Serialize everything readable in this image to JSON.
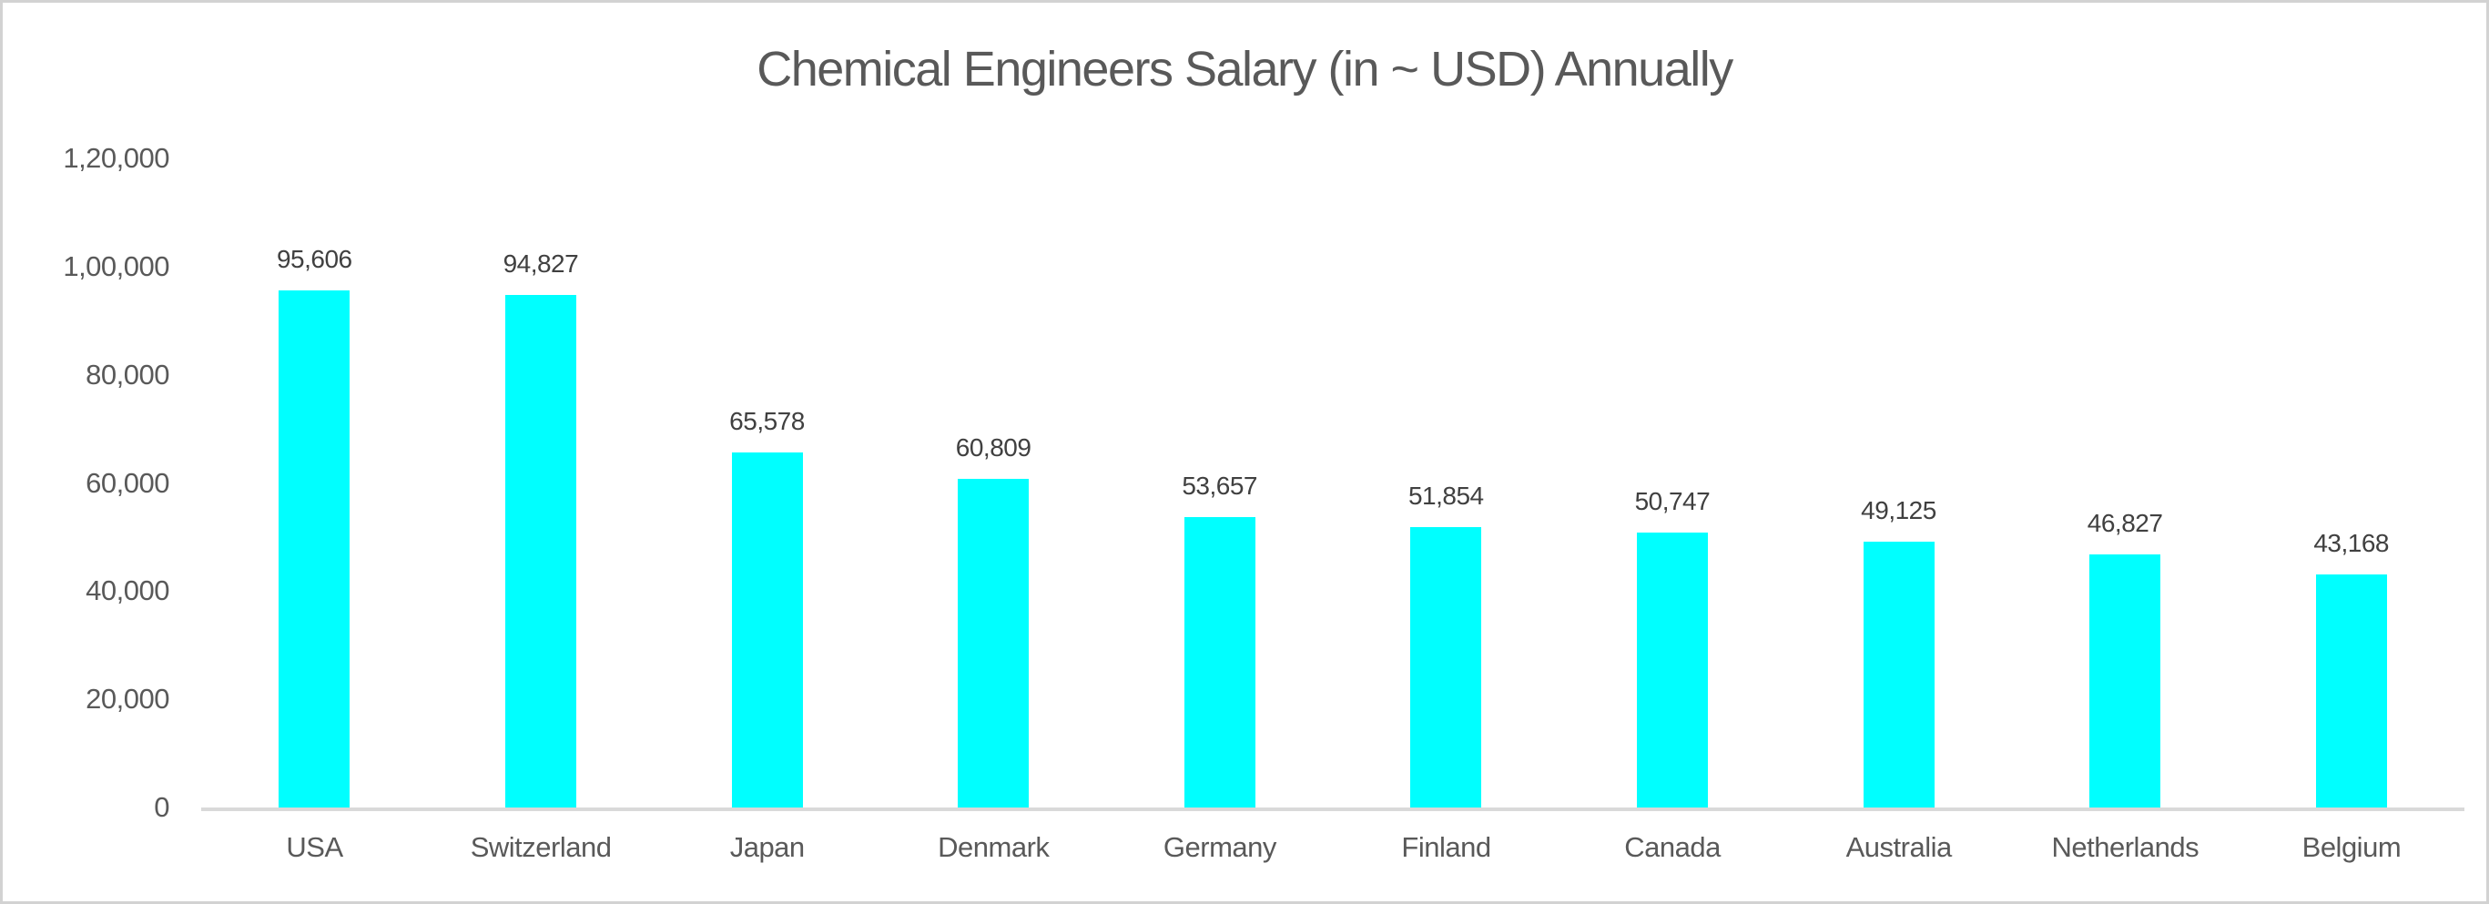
{
  "chart_data": {
    "type": "bar",
    "title": "Chemical Engineers Salary (in ~ USD) Annually",
    "categories": [
      "USA",
      "Switzerland",
      "Japan",
      "Denmark",
      "Germany",
      "Finland",
      "Canada",
      "Australia",
      "Netherlands",
      "Belgium"
    ],
    "values": [
      95606,
      94827,
      65578,
      60809,
      53657,
      51854,
      50747,
      49125,
      46827,
      43168
    ],
    "value_labels": [
      "95,606",
      "94,827",
      "65,578",
      "60,809",
      "53,657",
      "51,854",
      "50,747",
      "49,125",
      "46,827",
      "43,168"
    ],
    "y_ticks": [
      {
        "value": 0,
        "label": "0"
      },
      {
        "value": 20000,
        "label": "20,000"
      },
      {
        "value": 40000,
        "label": "40,000"
      },
      {
        "value": 60000,
        "label": "60,000"
      },
      {
        "value": 80000,
        "label": "80,000"
      },
      {
        "value": 100000,
        "label": "1,00,000"
      },
      {
        "value": 120000,
        "label": "1,20,000"
      }
    ],
    "ylim": [
      0,
      120000
    ],
    "xlabel": "",
    "ylabel": "",
    "grid": false,
    "legend": false,
    "colors": {
      "bar": "#00FFFF",
      "title_text": "#595959",
      "axis_text": "#595959",
      "value_label_text": "#404040",
      "axis_line": "#D9D9D9",
      "frame_border": "#D2D2D2",
      "background": "#FFFFFF"
    }
  }
}
